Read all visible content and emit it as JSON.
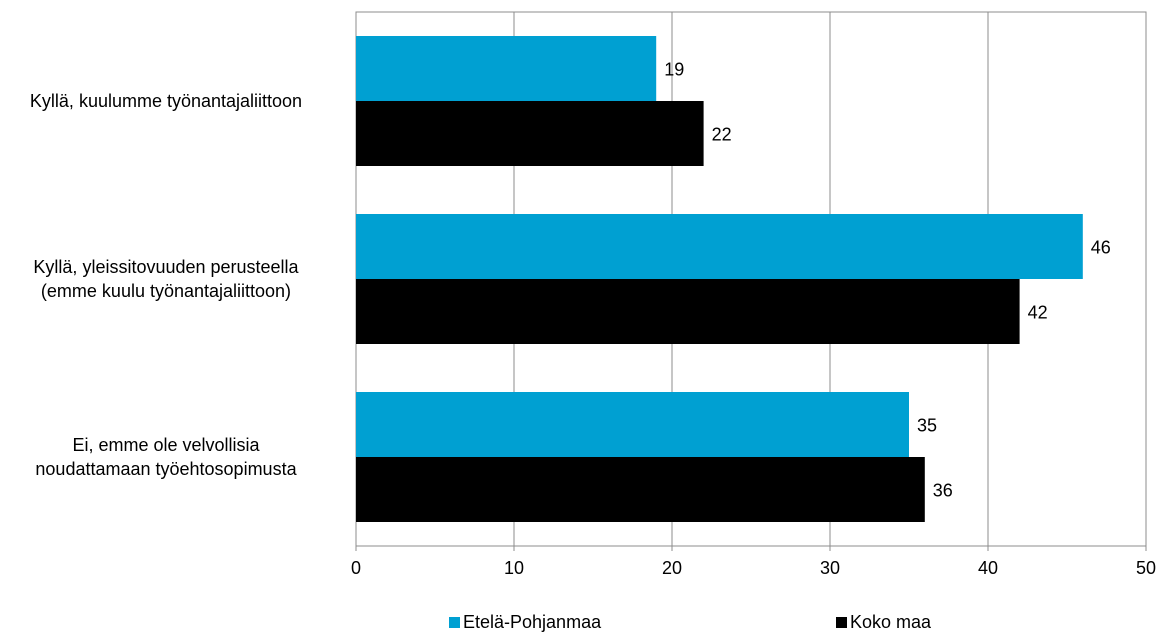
{
  "chart_data": {
    "type": "bar",
    "orientation": "horizontal",
    "categories": [
      "Kyllä, kuulumme työnantajaliittoon",
      "Kyllä, yleissitovuuden perusteella\n(emme kuulu työnantajaliittoon)",
      "Ei, emme ole velvollisia\nnoudattamaan työehtosopimusta"
    ],
    "series": [
      {
        "name": "Etelä-Pohjanmaa",
        "color": "#00A0D2",
        "values": [
          19,
          46,
          35
        ]
      },
      {
        "name": "Koko maa",
        "color": "#000000",
        "values": [
          22,
          42,
          36
        ]
      }
    ],
    "data_labels": [
      [
        "19",
        "46",
        "35"
      ],
      [
        "22",
        "42",
        "36"
      ]
    ],
    "xlim": [
      0,
      50
    ],
    "xticks": [
      0,
      10,
      20,
      30,
      40,
      50
    ],
    "grid": "vertical",
    "legend_position": "bottom",
    "title": "",
    "xlabel": "",
    "ylabel": ""
  }
}
